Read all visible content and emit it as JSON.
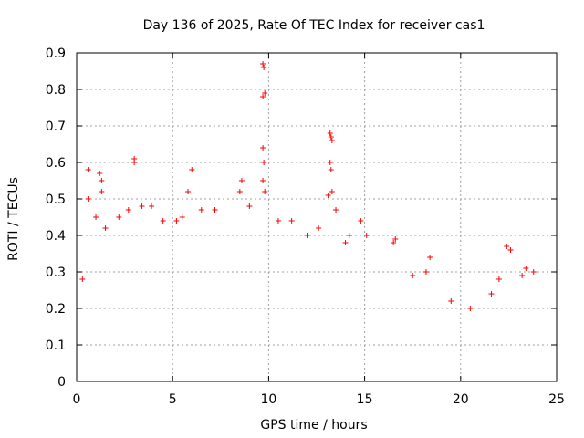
{
  "chart_data": {
    "type": "scatter",
    "title": "Day 136 of 2025, Rate Of TEC Index for receiver cas1",
    "xlabel": "GPS time / hours",
    "ylabel": "ROTI / TECUs",
    "xlim": [
      0,
      25
    ],
    "ylim": [
      0,
      0.9
    ],
    "xticks": [
      "0",
      "5",
      "10",
      "15",
      "20",
      "25"
    ],
    "yticks": [
      "0",
      "0.1",
      "0.2",
      "0.3",
      "0.4",
      "0.5",
      "0.6",
      "0.7",
      "0.8",
      "0.9"
    ],
    "grid": true,
    "marker": "+",
    "marker_color": "#ff0000",
    "series": [
      {
        "name": "ROTI",
        "points": [
          [
            0.3,
            0.28
          ],
          [
            0.6,
            0.58
          ],
          [
            0.6,
            0.5
          ],
          [
            1.0,
            0.45
          ],
          [
            1.2,
            0.57
          ],
          [
            1.3,
            0.55
          ],
          [
            1.3,
            0.52
          ],
          [
            1.5,
            0.42
          ],
          [
            2.2,
            0.45
          ],
          [
            2.7,
            0.47
          ],
          [
            3.0,
            0.61
          ],
          [
            3.0,
            0.6
          ],
          [
            3.4,
            0.48
          ],
          [
            3.9,
            0.48
          ],
          [
            4.5,
            0.44
          ],
          [
            5.2,
            0.44
          ],
          [
            5.5,
            0.45
          ],
          [
            5.8,
            0.52
          ],
          [
            6.0,
            0.58
          ],
          [
            6.5,
            0.47
          ],
          [
            7.2,
            0.47
          ],
          [
            8.5,
            0.52
          ],
          [
            8.6,
            0.55
          ],
          [
            9.0,
            0.48
          ],
          [
            9.7,
            0.87
          ],
          [
            9.75,
            0.86
          ],
          [
            9.8,
            0.79
          ],
          [
            9.7,
            0.78
          ],
          [
            9.7,
            0.64
          ],
          [
            9.75,
            0.6
          ],
          [
            9.7,
            0.55
          ],
          [
            9.8,
            0.52
          ],
          [
            10.5,
            0.44
          ],
          [
            11.2,
            0.44
          ],
          [
            12.0,
            0.4
          ],
          [
            12.6,
            0.42
          ],
          [
            13.2,
            0.68
          ],
          [
            13.25,
            0.67
          ],
          [
            13.3,
            0.66
          ],
          [
            13.2,
            0.6
          ],
          [
            13.25,
            0.58
          ],
          [
            13.3,
            0.52
          ],
          [
            13.1,
            0.51
          ],
          [
            13.5,
            0.47
          ],
          [
            14.0,
            0.38
          ],
          [
            14.2,
            0.4
          ],
          [
            14.8,
            0.44
          ],
          [
            15.1,
            0.4
          ],
          [
            16.5,
            0.38
          ],
          [
            16.6,
            0.39
          ],
          [
            17.5,
            0.29
          ],
          [
            18.2,
            0.3
          ],
          [
            18.4,
            0.34
          ],
          [
            19.5,
            0.22
          ],
          [
            20.5,
            0.2
          ],
          [
            21.6,
            0.24
          ],
          [
            22.0,
            0.28
          ],
          [
            22.4,
            0.37
          ],
          [
            22.6,
            0.36
          ],
          [
            23.2,
            0.29
          ],
          [
            23.4,
            0.31
          ],
          [
            23.8,
            0.3
          ]
        ]
      }
    ]
  }
}
